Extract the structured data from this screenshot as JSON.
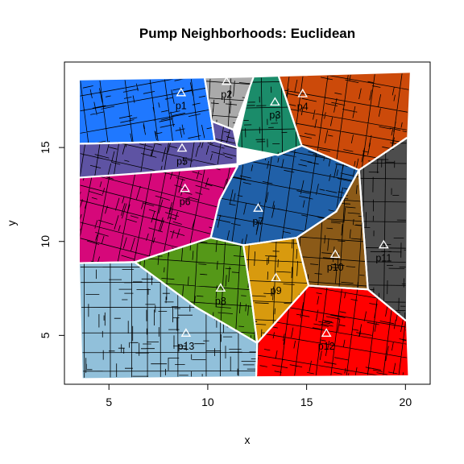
{
  "chart_data": {
    "type": "map",
    "title": "Pump Neighborhoods: Euclidean",
    "xlabel": "x",
    "ylabel": "y",
    "xlim": [
      2.75,
      21.25
    ],
    "ylim": [
      2.4,
      19.55
    ],
    "x_ticks": [
      "5",
      "10",
      "15",
      "20"
    ],
    "x_tick_values": [
      5,
      10,
      15,
      20
    ],
    "y_ticks": [
      "5",
      "10",
      "15"
    ],
    "y_tick_values": [
      5,
      10,
      15
    ],
    "grid": false,
    "pumps": [
      {
        "label": "p1",
        "x": 8.65,
        "y": 17.9
      },
      {
        "label": "p2",
        "x": 10.95,
        "y": 18.5
      },
      {
        "label": "p3",
        "x": 13.4,
        "y": 17.4
      },
      {
        "label": "p4",
        "x": 14.8,
        "y": 17.85
      },
      {
        "label": "p5",
        "x": 8.7,
        "y": 14.95
      },
      {
        "label": "p6",
        "x": 8.85,
        "y": 12.8
      },
      {
        "label": "p7",
        "x": 12.55,
        "y": 11.75
      },
      {
        "label": "p8",
        "x": 10.65,
        "y": 7.5
      },
      {
        "label": "p9",
        "x": 13.45,
        "y": 8.05
      },
      {
        "label": "p10",
        "x": 16.45,
        "y": 9.3
      },
      {
        "label": "p11",
        "x": 18.9,
        "y": 9.8
      },
      {
        "label": "p12",
        "x": 16,
        "y": 5.1
      },
      {
        "label": "p13",
        "x": 8.9,
        "y": 5.1
      }
    ],
    "neighborhoods": [
      {
        "pump": "p1",
        "color": "#1F78FF",
        "points": [
          [
            3.55,
            18.55
          ],
          [
            9.85,
            18.65
          ],
          [
            10.2,
            16.4
          ],
          [
            10.35,
            15.35
          ],
          [
            3.55,
            15.2
          ]
        ]
      },
      {
        "pump": "p2",
        "color": "#AAAAAA",
        "points": [
          [
            9.85,
            18.65
          ],
          [
            12.3,
            18.7
          ],
          [
            11.3,
            15.95
          ],
          [
            10.2,
            16.4
          ]
        ]
      },
      {
        "pump": "p3",
        "color": "#1B8C6A",
        "points": [
          [
            12.3,
            18.7
          ],
          [
            13.6,
            18.75
          ],
          [
            14.75,
            15.1
          ],
          [
            13.55,
            14.6
          ],
          [
            11.5,
            15
          ]
        ]
      },
      {
        "pump": "p4",
        "color": "#CC4A0A",
        "points": [
          [
            13.6,
            18.75
          ],
          [
            20.2,
            18.95
          ],
          [
            20.05,
            15.5
          ],
          [
            17.65,
            13.8
          ],
          [
            14.75,
            15.1
          ]
        ]
      },
      {
        "pump": "p5",
        "color": "#5E53A3",
        "points": [
          [
            3.55,
            15.2
          ],
          [
            10.35,
            15.35
          ],
          [
            10.2,
            16.4
          ],
          [
            11.3,
            15.95
          ],
          [
            11.5,
            15
          ],
          [
            11.5,
            14.2
          ],
          [
            3.55,
            13.4
          ]
        ]
      },
      {
        "pump": "p6",
        "color": "#D6087A",
        "points": [
          [
            3.55,
            13.4
          ],
          [
            11.5,
            14
          ],
          [
            10.6,
            12.2
          ],
          [
            10.15,
            10.2
          ],
          [
            6.3,
            8.9
          ],
          [
            3.55,
            8.85
          ]
        ]
      },
      {
        "pump": "p7",
        "color": "#2060A8",
        "points": [
          [
            11.5,
            14
          ],
          [
            13.55,
            14.6
          ],
          [
            14.75,
            15.1
          ],
          [
            17.65,
            13.8
          ],
          [
            16.5,
            11.6
          ],
          [
            14.5,
            10.2
          ],
          [
            11.8,
            9.8
          ],
          [
            10.15,
            10.2
          ],
          [
            10.6,
            12.2
          ]
        ]
      },
      {
        "pump": "p8",
        "color": "#559818",
        "points": [
          [
            6.3,
            8.9
          ],
          [
            10.15,
            10.2
          ],
          [
            11.8,
            9.8
          ],
          [
            12.2,
            7.1
          ],
          [
            12.5,
            4.6
          ],
          [
            9.4,
            6.5
          ]
        ]
      },
      {
        "pump": "p9",
        "color": "#D89A0E",
        "points": [
          [
            11.8,
            9.8
          ],
          [
            14.5,
            10.2
          ],
          [
            15.1,
            7.65
          ],
          [
            12.5,
            4.6
          ],
          [
            12.2,
            7.1
          ]
        ]
      },
      {
        "pump": "p10",
        "color": "#8B5A18",
        "points": [
          [
            14.5,
            10.2
          ],
          [
            16.5,
            11.6
          ],
          [
            17.65,
            13.8
          ],
          [
            18.1,
            7.45
          ],
          [
            15.1,
            7.65
          ]
        ]
      },
      {
        "pump": "p11",
        "color": "#4D4D4D",
        "points": [
          [
            17.65,
            13.8
          ],
          [
            20.05,
            15.5
          ],
          [
            20.0,
            5.8
          ],
          [
            18.1,
            7.45
          ]
        ]
      },
      {
        "pump": "p12",
        "color": "#FF0000",
        "points": [
          [
            15.1,
            7.65
          ],
          [
            18.1,
            7.45
          ],
          [
            20.0,
            5.8
          ],
          [
            20.1,
            2.9
          ],
          [
            12.45,
            2.85
          ],
          [
            12.5,
            4.6
          ]
        ]
      },
      {
        "pump": "p13",
        "color": "#91C0DA",
        "points": [
          [
            3.55,
            8.85
          ],
          [
            6.3,
            8.9
          ],
          [
            9.4,
            6.5
          ],
          [
            12.5,
            4.6
          ],
          [
            12.45,
            2.85
          ],
          [
            3.7,
            2.75
          ]
        ]
      }
    ]
  }
}
